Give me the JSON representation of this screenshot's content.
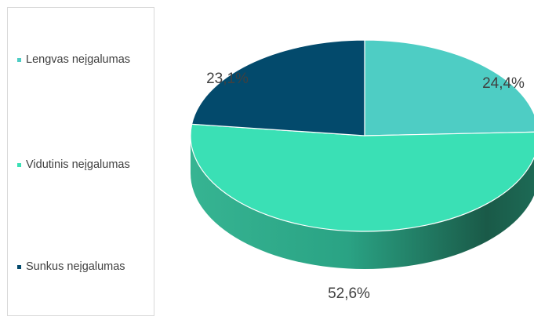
{
  "chart_data": {
    "type": "pie",
    "categories": [
      "Lengvas neįgalumas",
      "Vidutinis neįgalumas",
      "Sunkus neįgalumas"
    ],
    "values": [
      24.4,
      52.6,
      23.1
    ],
    "data_labels": [
      "24,4%",
      "52,6%",
      "23,1%"
    ],
    "colors": [
      "#4ecdc4",
      "#3ae0b5",
      "#034a6c"
    ],
    "legend_position": "left",
    "style": "3d"
  }
}
